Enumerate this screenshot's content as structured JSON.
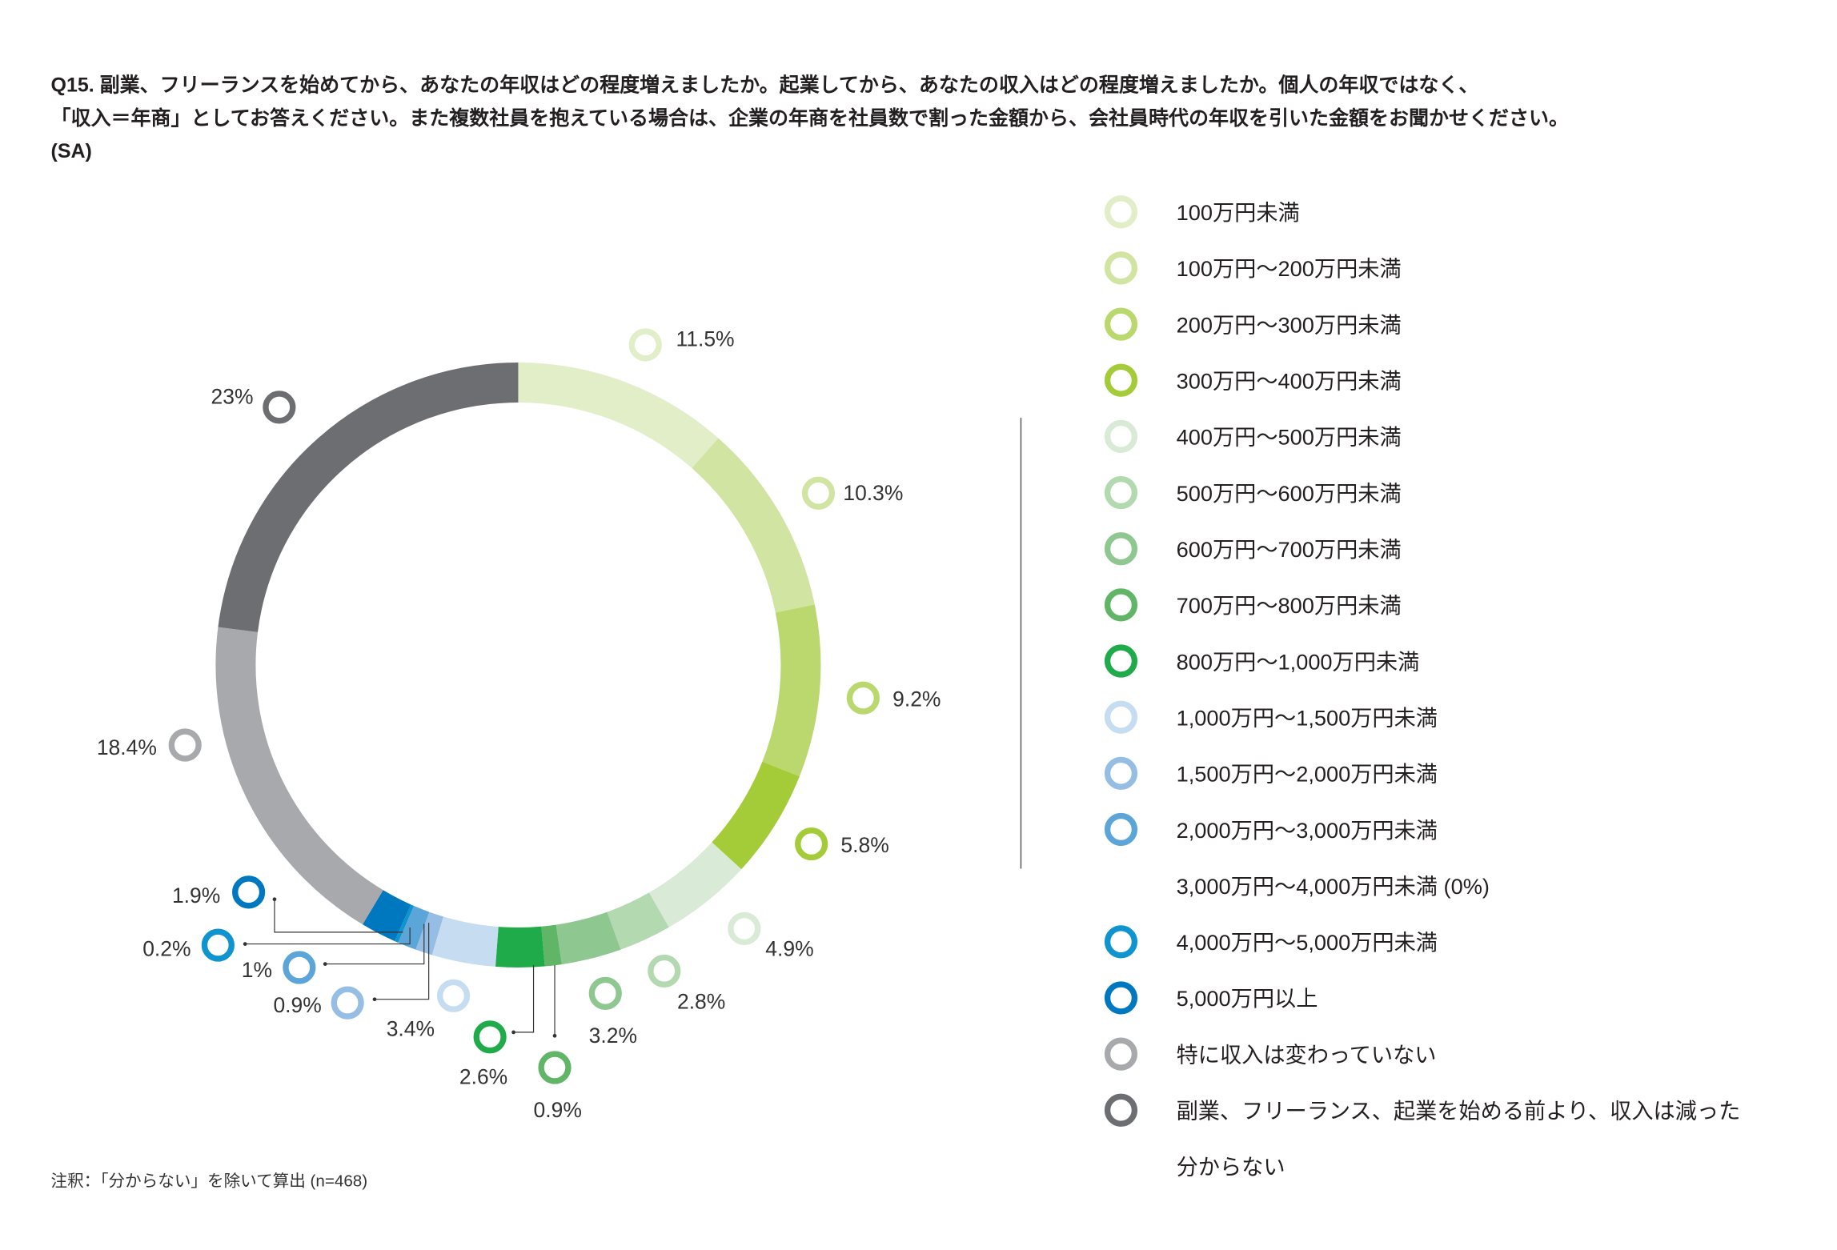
{
  "title_lines": [
    "Q15. 副業、フリーランスを始めてから、あなたの年収はどの程度増えましたか。起業してから、あなたの収入はどの程度増えましたか。個人の年収ではなく、",
    "「収入＝年商」としてお答えください。また複数社員を抱えている場合は、企業の年商を社員数で割った金額から、会社員時代の年収を引いた金額をお聞かせください。",
    "(SA)"
  ],
  "footnote": "注釈：「分からない」を除いて算出 (n=468)",
  "chart_data": {
    "type": "pie",
    "variant": "donut",
    "title": "Q15. 副業、フリーランスを始めてから、あなたの年収はどの程度増えましたか。(SA)",
    "start": "top, clockwise",
    "slices": [
      {
        "label": "100万円未満",
        "value": 11.5,
        "text": "11.5%",
        "color": "#e1eec8"
      },
      {
        "label": "100万円〜200万円未満",
        "value": 10.3,
        "text": "10.3%",
        "color": "#d2e4a1"
      },
      {
        "label": "200万円〜300万円未満",
        "value": 9.2,
        "text": "9.2%",
        "color": "#bbd86f"
      },
      {
        "label": "300万円〜400万円未満",
        "value": 5.8,
        "text": "5.8%",
        "color": "#a4cc39"
      },
      {
        "label": "400万円〜500万円未満",
        "value": 4.9,
        "text": "4.9%",
        "color": "#d9eAd7"
      },
      {
        "label": "500万円〜600万円未満",
        "value": 2.8,
        "text": "2.8%",
        "color": "#b3d9b1"
      },
      {
        "label": "600万円〜700万円未満",
        "value": 3.2,
        "text": "3.2%",
        "color": "#8ec790"
      },
      {
        "label": "700万円〜800万円未満",
        "value": 0.9,
        "text": "0.9%",
        "color": "#60b666"
      },
      {
        "label": "800万円〜1,000万円未満",
        "value": 2.6,
        "text": "2.6%",
        "color": "#20ab4b"
      },
      {
        "label": "1,000万円〜1,500万円未満",
        "value": 3.4,
        "text": "3.4%",
        "color": "#c6ddf1"
      },
      {
        "label": "1,500万円〜2,000万円未満",
        "value": 0.9,
        "text": "0.9%",
        "color": "#96bee4"
      },
      {
        "label": "2,000万円〜3,000万円未満",
        "value": 1.0,
        "text": "1%",
        "color": "#5ca5d9"
      },
      {
        "label": "3,000万円〜4,000万円未満 (0%)",
        "value": 0,
        "text": "",
        "color": ""
      },
      {
        "label": "4,000万円〜5,000万円未満",
        "value": 0.2,
        "text": "0.2%",
        "color": "#1094d0"
      },
      {
        "label": "5,000万円以上",
        "value": 1.9,
        "text": "1.9%",
        "color": "#0078c0"
      },
      {
        "label": "特に収入は変わっていない",
        "value": 18.4,
        "text": "18.4%",
        "color": "#a8a9ac"
      },
      {
        "label": "副業、フリーランス、起業を始める前より、収入は減った",
        "value": 23,
        "text": "23%",
        "color": "#6d6e72"
      },
      {
        "label": "分からない",
        "value": null,
        "text": "",
        "color": ""
      }
    ],
    "legend_position": "right"
  }
}
